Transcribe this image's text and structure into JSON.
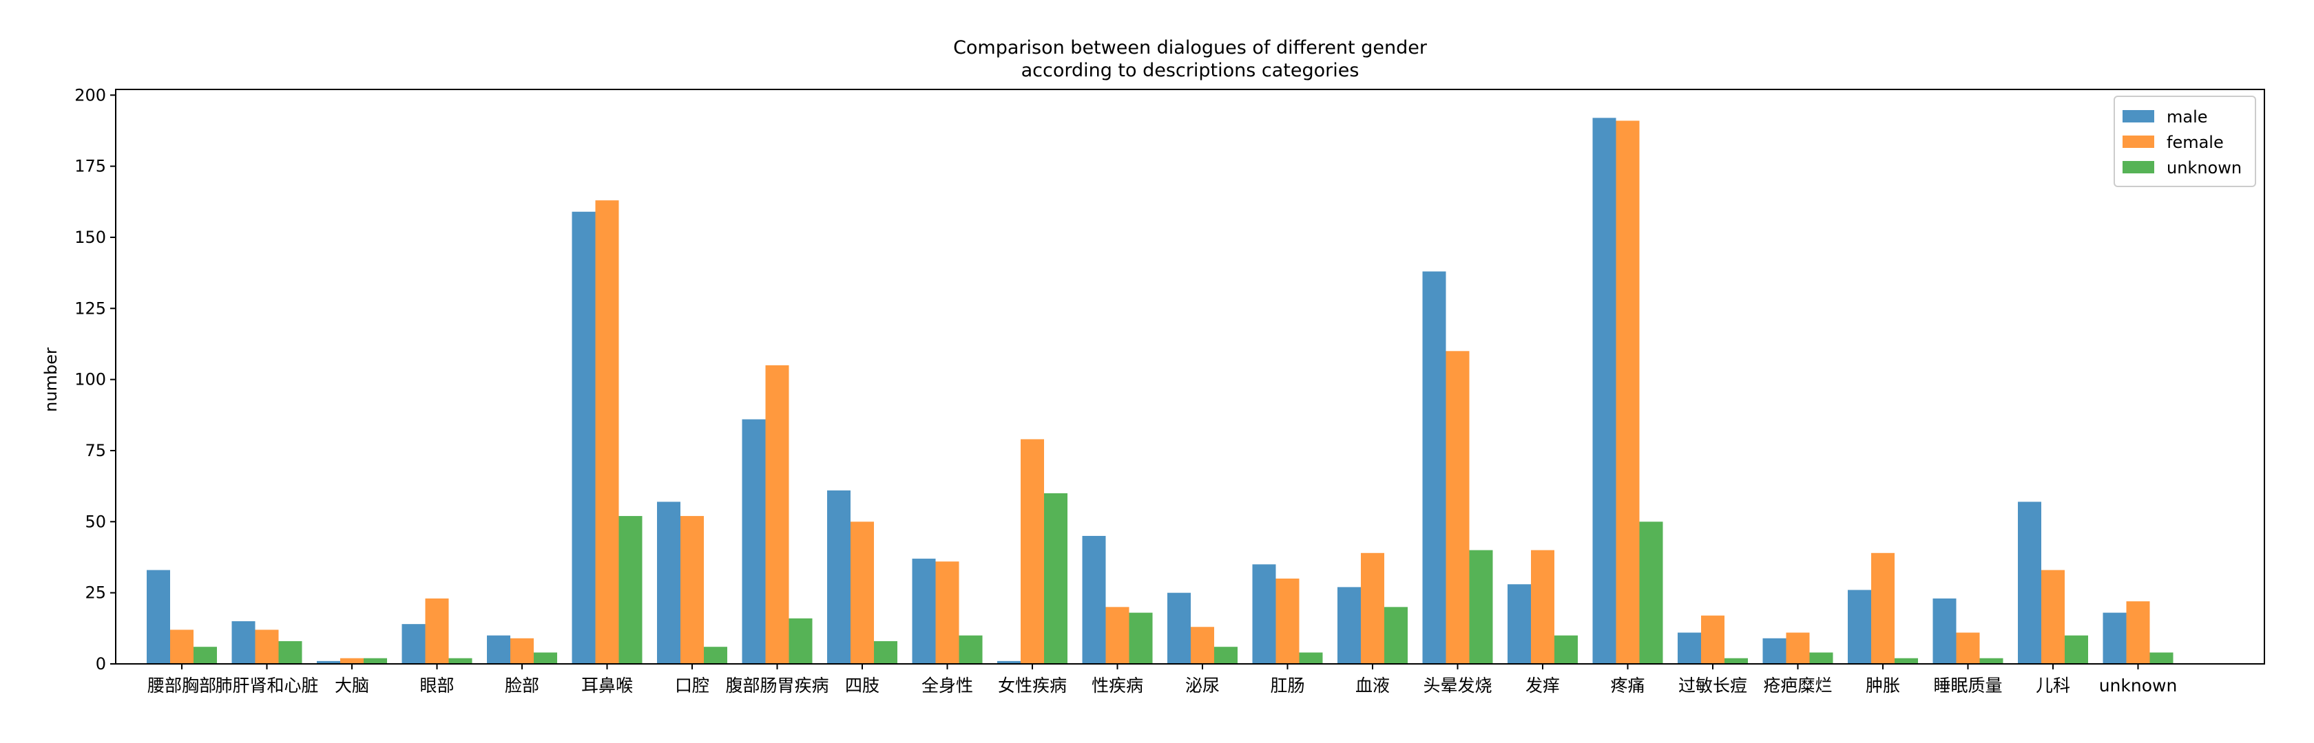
{
  "chart_data": {
    "type": "bar",
    "title": "Comparison between dialogues of different gender",
    "subtitle": "according to descriptions categories",
    "xlabel": "",
    "ylabel": "number",
    "ylim": [
      0,
      202
    ],
    "yticks": [
      0,
      25,
      50,
      75,
      100,
      125,
      150,
      175,
      200
    ],
    "grid": false,
    "legend_position": "top-right",
    "categories": [
      "腰部胸部",
      "肺肝肾和心脏",
      "大脑",
      "眼部",
      "脸部",
      "耳鼻喉",
      "口腔",
      "腹部肠胃疾病",
      "四肢",
      "全身性",
      "女性疾病",
      "性疾病",
      "泌尿",
      "肛肠",
      "血液",
      "头晕发烧",
      "发痒",
      "疼痛",
      "过敏长痘",
      "疮疤糜烂",
      "肿胀",
      "睡眠质量",
      "儿科",
      "unknown"
    ],
    "series": [
      {
        "name": "male",
        "color": "#1f77b4",
        "values": [
          33,
          15,
          1,
          14,
          10,
          159,
          57,
          86,
          61,
          37,
          1,
          45,
          25,
          35,
          27,
          138,
          28,
          192,
          11,
          9,
          26,
          23,
          57,
          18
        ]
      },
      {
        "name": "female",
        "color": "#ff7f0e",
        "values": [
          12,
          12,
          2,
          23,
          9,
          163,
          52,
          105,
          50,
          36,
          79,
          20,
          13,
          30,
          39,
          110,
          40,
          191,
          17,
          11,
          39,
          11,
          33,
          22
        ]
      },
      {
        "name": "unknown",
        "color": "#2ca02c",
        "values": [
          6,
          8,
          2,
          2,
          4,
          52,
          6,
          16,
          8,
          10,
          60,
          18,
          6,
          4,
          20,
          40,
          10,
          50,
          2,
          4,
          2,
          2,
          10,
          4
        ]
      }
    ]
  }
}
